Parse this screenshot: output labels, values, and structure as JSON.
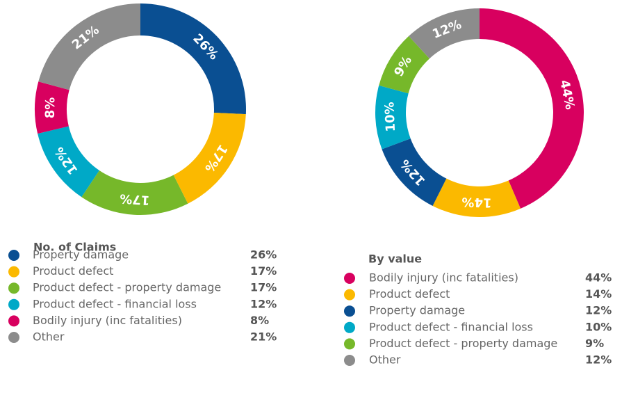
{
  "chart_data": [
    {
      "type": "pie",
      "title": "No. of Claims",
      "categories": [
        "Property damage",
        "Product defect",
        "Product defect - property damage",
        "Product defect - financial loss",
        "Bodily injury (inc fatalities)",
        "Other"
      ],
      "values": [
        26,
        17,
        17,
        12,
        8,
        21
      ],
      "value_labels": [
        "26%",
        "17%",
        "17%",
        "12%",
        "8%",
        "21%"
      ],
      "colors": [
        "#0a4f92",
        "#fbb900",
        "#76b82a",
        "#00a9c7",
        "#d8005f",
        "#8c8c8c"
      ]
    },
    {
      "type": "pie",
      "title": "By value",
      "categories": [
        "Bodily injury (inc fatalities)",
        "Product defect",
        "Property damage",
        "Product defect - financial loss",
        "Product defect - property damage",
        "Other"
      ],
      "values": [
        44,
        14,
        12,
        10,
        9,
        12
      ],
      "value_labels": [
        "44%",
        "14%",
        "12%",
        "10%",
        "9%",
        "12%"
      ],
      "colors": [
        "#d8005f",
        "#fbb900",
        "#0a4f92",
        "#00a9c7",
        "#76b82a",
        "#8c8c8c"
      ]
    }
  ]
}
